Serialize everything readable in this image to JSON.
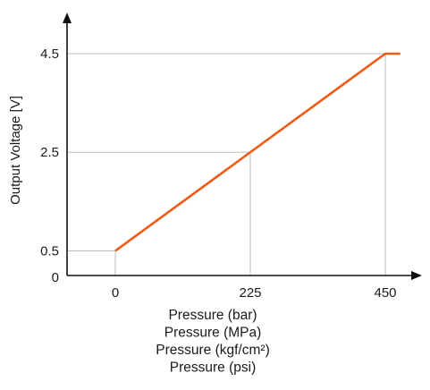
{
  "chart_data": {
    "type": "line",
    "title": "",
    "ylabel": "Output Voltage [V]",
    "xlabel_lines": [
      "Pressure (bar)",
      "Pressure (MPa)",
      "Pressure (kgf/cm²)",
      "Pressure (psi)"
    ],
    "x_ticks": [
      {
        "value": 0,
        "label": "0"
      },
      {
        "value": 225,
        "label": "225"
      },
      {
        "value": 450,
        "label": "450"
      }
    ],
    "y_ticks": [
      {
        "value": 0,
        "label": "0"
      },
      {
        "value": 0.5,
        "label": "0.5"
      },
      {
        "value": 2.5,
        "label": "2.5"
      },
      {
        "value": 4.5,
        "label": "4.5"
      }
    ],
    "xlim": [
      -70,
      490
    ],
    "ylim": [
      0,
      5.5
    ],
    "grid": "reference lines at tick values",
    "legend": "none",
    "series": [
      {
        "x": [
          0,
          450,
          475
        ],
        "y": [
          0.5,
          4.5,
          4.5
        ]
      }
    ],
    "colors": {
      "line": "#f05a14",
      "axis": "#111111",
      "grid": "#bdbdbd"
    }
  }
}
